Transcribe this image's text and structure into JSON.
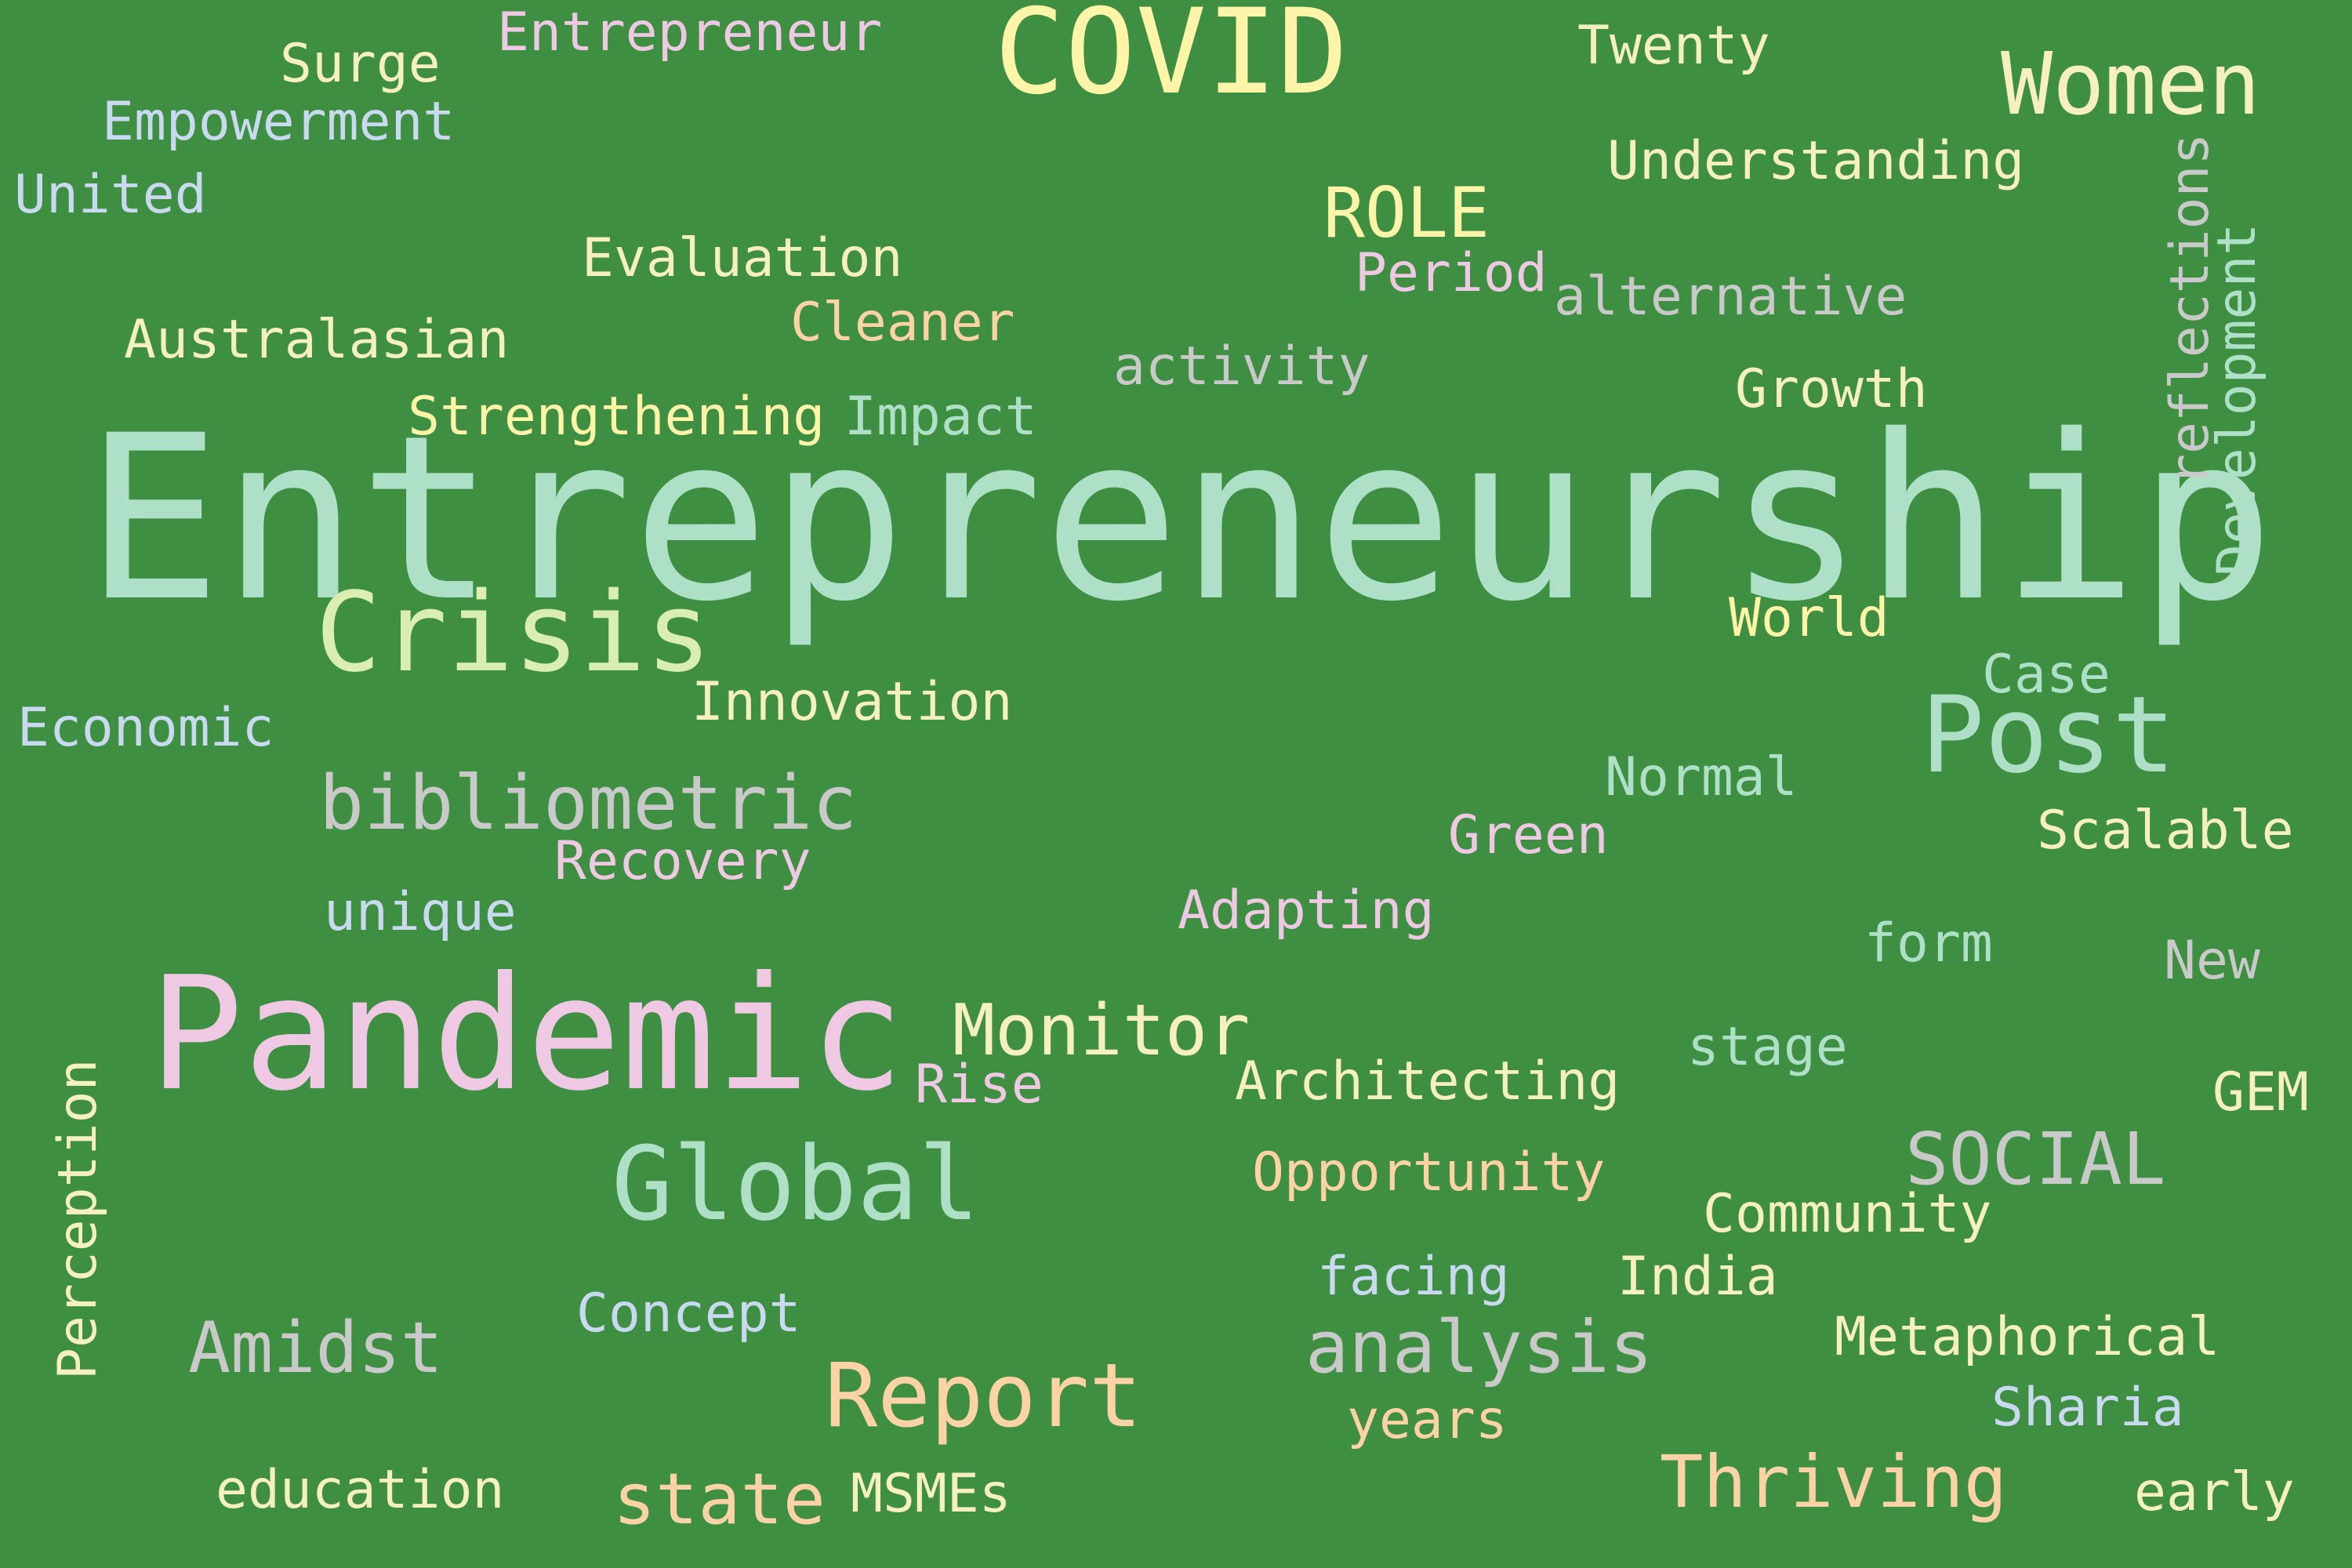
{
  "cloud": {
    "w_entrepreneurship": "Entrepreneurship",
    "w_pandemic": "Pandemic",
    "w_covid": "COVID",
    "w_crisis": "Crisis",
    "w_post": "Post",
    "w_women": "Women",
    "w_global": "Global",
    "w_report": "Report",
    "w_bibliometric": "bibliometric",
    "w_monitor": "Monitor",
    "w_analysis": "analysis",
    "w_thriving": "Thriving",
    "w_social": "SOCIAL",
    "w_amidst": "Amidst",
    "w_state": "state",
    "w_role": "ROLE",
    "w_entrepreneur": "Entrepreneur",
    "w_surge": "Surge",
    "w_empowerment": "Empowerment",
    "w_united": "United",
    "w_twenty": "Twenty",
    "w_understanding": "Understanding",
    "w_evaluation": "Evaluation",
    "w_period": "Period",
    "w_alternative": "alternative",
    "w_australasian": "Australasian",
    "w_cleaner": "Cleaner",
    "w_activity": "activity",
    "w_growth": "Growth",
    "w_strengthening": "Strengthening",
    "w_impact": "Impact",
    "w_reflections": "reflections",
    "w_development": "Development",
    "w_world": "World",
    "w_economic": "Economic",
    "w_innovation": "Innovation",
    "w_case": "Case",
    "w_normal": "Normal",
    "w_green": "Green",
    "w_scalable": "Scalable",
    "w_recovery": "Recovery",
    "w_unique": "unique",
    "w_adapting": "Adapting",
    "w_form": "form",
    "w_new": "New",
    "w_rise": "Rise",
    "w_architecting": "Architecting",
    "w_stage": "stage",
    "w_gem": "GEM",
    "w_perception": "Perception",
    "w_opportunity": "Opportunity",
    "w_community": "Community",
    "w_facing": "facing",
    "w_india": "India",
    "w_concept": "Concept",
    "w_metaphorical": "Metaphorical",
    "w_years": "years",
    "w_sharia": "Sharia",
    "w_education": "education",
    "w_msmes": "MSMEs",
    "w_early": "early"
  },
  "colors": {
    "background": "#3f8f42",
    "pale_yellow": "#fff5a9",
    "pink": "#efc9e3",
    "mint": "#aee0c8",
    "light_gray": "#c9c9c9",
    "pale_blue": "#c9d9ef",
    "peach": "#fdd3a6",
    "pale_green_yellow": "#d9eeb0",
    "cream": "#f6efc2"
  }
}
